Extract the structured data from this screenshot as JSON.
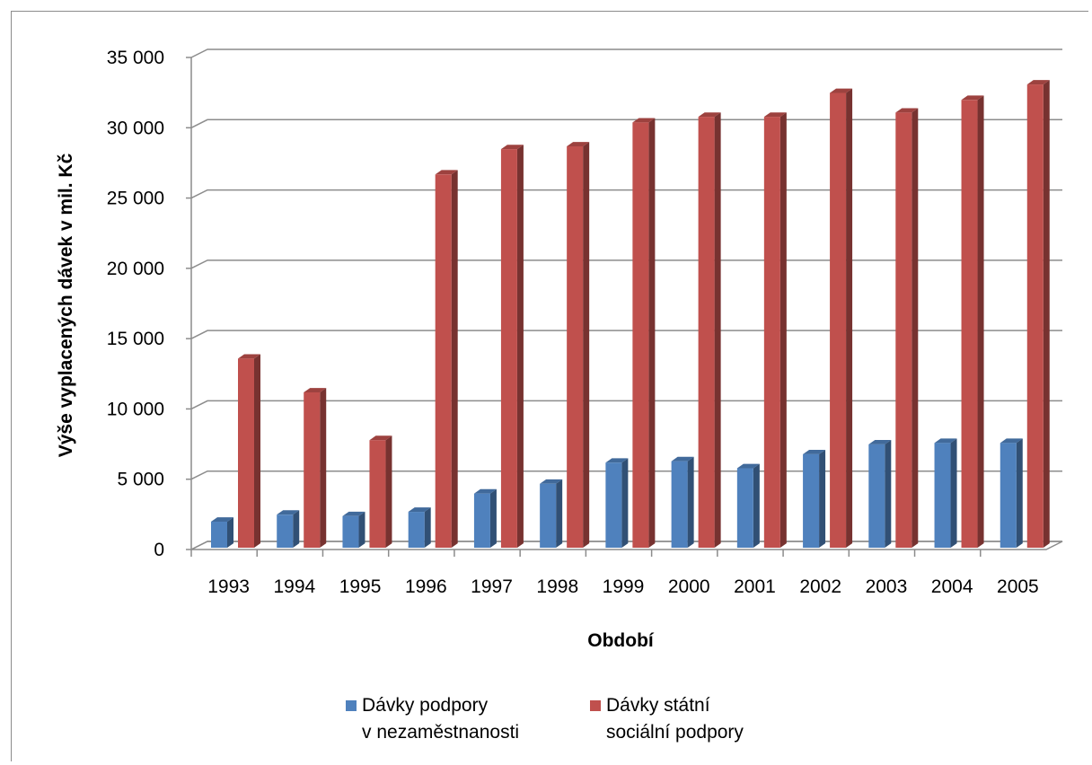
{
  "chart_data": {
    "type": "bar",
    "title": "",
    "xlabel": "Období",
    "ylabel": "Výše vyplacených dávek v mil. Kč",
    "ylim": [
      0,
      35000
    ],
    "y_ticks": [
      "0",
      "5 000",
      "10 000",
      "15 000",
      "20 000",
      "25 000",
      "30 000",
      "35 000"
    ],
    "y_tick_values": [
      0,
      5000,
      10000,
      15000,
      20000,
      25000,
      30000,
      35000
    ],
    "categories": [
      "1993",
      "1994",
      "1995",
      "1996",
      "1997",
      "1998",
      "1999",
      "2000",
      "2001",
      "2002",
      "2003",
      "2004",
      "2005"
    ],
    "series": [
      {
        "name": "Dávky podpory v nezaměstnanosti",
        "name_lines": [
          "Dávky podpory",
          "v nezaměstnanosti"
        ],
        "color": "#4f81bd",
        "values": [
          1500,
          2000,
          1900,
          2200,
          3500,
          4200,
          5700,
          5800,
          5300,
          6300,
          7000,
          7100,
          7100
        ]
      },
      {
        "name": "Dávky státní sociální podpory",
        "name_lines": [
          "Dávky státní",
          "sociální podpory"
        ],
        "color": "#c0504d",
        "values": [
          13100,
          10700,
          7300,
          26200,
          28000,
          28200,
          29900,
          30300,
          30300,
          32000,
          30600,
          31500,
          32600
        ]
      }
    ],
    "grid": true,
    "legend_position": "bottom"
  }
}
